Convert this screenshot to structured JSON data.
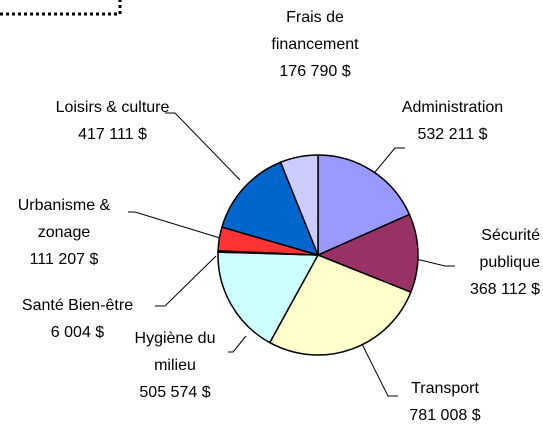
{
  "chart_data": {
    "type": "pie",
    "categories": [
      "Administration",
      "Sécurité publique",
      "Transport",
      "Hygiène du milieu",
      "Santé Bien-être",
      "Urbanisme & zonage",
      "Loisirs & culture",
      "Frais de financement"
    ],
    "values": [
      532211,
      368112,
      781008,
      505574,
      6004,
      111207,
      417111,
      176790
    ],
    "value_labels": [
      "532 211 $",
      "368 112 $",
      "781 008 $",
      "505 574 $",
      "6 004 $",
      "111 207 $",
      "417 111 $",
      "176 790 $"
    ],
    "colors": [
      "#9999ff",
      "#993366",
      "#ffffcc",
      "#ccffff",
      "#ffc000",
      "#ff3333",
      "#0066cc",
      "#ccccff"
    ]
  }
}
